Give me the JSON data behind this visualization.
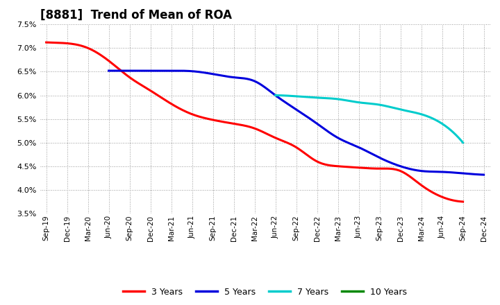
{
  "title": "[8881]  Trend of Mean of ROA",
  "title_fontsize": 12,
  "background_color": "#ffffff",
  "plot_bg_color": "#ffffff",
  "grid_color": "#999999",
  "x_labels": [
    "Sep-19",
    "Dec-19",
    "Mar-20",
    "Jun-20",
    "Sep-20",
    "Dec-20",
    "Mar-21",
    "Jun-21",
    "Sep-21",
    "Dec-21",
    "Mar-22",
    "Jun-22",
    "Sep-22",
    "Dec-22",
    "Mar-23",
    "Jun-23",
    "Sep-23",
    "Dec-23",
    "Mar-24",
    "Jun-24",
    "Sep-24",
    "Dec-24"
  ],
  "series": {
    "3 Years": {
      "color": "#ff0000",
      "values": [
        0.0712,
        0.071,
        0.07,
        0.0673,
        0.0638,
        0.061,
        0.0582,
        0.056,
        0.0548,
        0.054,
        0.053,
        0.051,
        0.049,
        0.046,
        0.045,
        0.0447,
        0.0445,
        0.044,
        0.041,
        0.0385,
        0.0375,
        null
      ]
    },
    "5 Years": {
      "color": "#0000dd",
      "values": [
        null,
        null,
        null,
        0.0652,
        0.0652,
        0.0652,
        0.0652,
        0.0651,
        0.0645,
        0.0638,
        0.063,
        0.06,
        0.057,
        0.054,
        0.051,
        0.049,
        0.0468,
        0.045,
        0.044,
        0.0438,
        0.0435,
        0.0432
      ]
    },
    "7 Years": {
      "color": "#00cccc",
      "values": [
        null,
        null,
        null,
        null,
        null,
        null,
        null,
        null,
        null,
        null,
        null,
        0.06,
        0.0598,
        0.0595,
        0.0592,
        0.0585,
        0.058,
        0.057,
        0.056,
        0.054,
        0.05,
        null
      ]
    },
    "10 Years": {
      "color": "#008800",
      "values": [
        null,
        null,
        null,
        null,
        null,
        null,
        null,
        null,
        null,
        null,
        null,
        null,
        null,
        null,
        null,
        null,
        null,
        null,
        null,
        null,
        null,
        null
      ]
    }
  },
  "ylim": [
    0.035,
    0.075
  ],
  "yticks": [
    0.035,
    0.04,
    0.045,
    0.05,
    0.055,
    0.06,
    0.065,
    0.07,
    0.075
  ],
  "legend_entries": [
    "3 Years",
    "5 Years",
    "7 Years",
    "10 Years"
  ],
  "legend_colors": [
    "#ff0000",
    "#0000dd",
    "#00cccc",
    "#008800"
  ]
}
